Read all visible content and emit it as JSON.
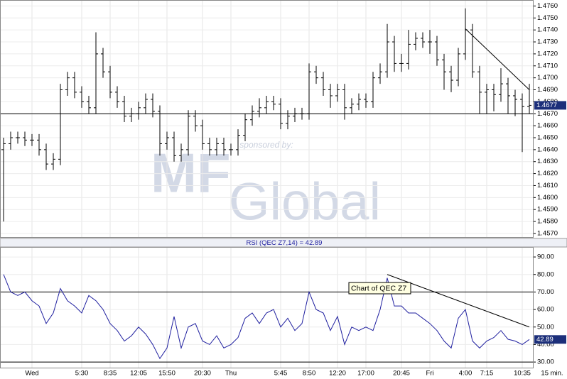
{
  "chart_data": [
    {
      "type": "ohlc",
      "color": "#000000",
      "grid": true,
      "open": [
        1.464,
        1.4645,
        1.465,
        1.465,
        1.4648,
        1.4648,
        1.464,
        1.4628,
        1.4632,
        1.469,
        1.47,
        1.4688,
        1.468,
        1.4675,
        1.472,
        1.4705,
        1.4688,
        1.468,
        1.4668,
        1.467,
        1.4675,
        1.4682,
        1.4672,
        1.4645,
        1.465,
        1.4635,
        1.464,
        1.4668,
        1.466,
        1.4645,
        1.464,
        1.4645,
        1.464,
        1.464,
        1.4652,
        1.4665,
        1.4672,
        1.4675,
        1.468,
        1.4678,
        1.4662,
        1.4668,
        1.467,
        1.467,
        1.4705,
        1.47,
        1.469,
        1.4685,
        1.469,
        1.4675,
        1.4678,
        1.4682,
        1.468,
        1.47,
        1.4705,
        1.473,
        1.4712,
        1.4712,
        1.4728,
        1.4733,
        1.473,
        1.473,
        1.4715,
        1.4705,
        1.4698,
        1.472,
        1.474,
        1.4705,
        1.4688,
        1.469,
        1.4686,
        1.4695,
        1.4685,
        1.4682,
        1.4676
      ],
      "high": [
        1.465,
        1.4655,
        1.4655,
        1.4655,
        1.4653,
        1.4653,
        1.4645,
        1.4637,
        1.4695,
        1.4705,
        1.4705,
        1.4693,
        1.4685,
        1.4738,
        1.4725,
        1.471,
        1.4693,
        1.4685,
        1.4675,
        1.468,
        1.4687,
        1.4687,
        1.4677,
        1.4655,
        1.4655,
        1.4645,
        1.4673,
        1.4673,
        1.4665,
        1.465,
        1.465,
        1.465,
        1.4645,
        1.4657,
        1.467,
        1.4677,
        1.4683,
        1.4685,
        1.4685,
        1.4683,
        1.4673,
        1.4675,
        1.4675,
        1.4712,
        1.471,
        1.4705,
        1.4695,
        1.4695,
        1.4695,
        1.4683,
        1.4687,
        1.4687,
        1.4705,
        1.4712,
        1.4745,
        1.4735,
        1.472,
        1.474,
        1.4738,
        1.4738,
        1.474,
        1.4735,
        1.472,
        1.471,
        1.4725,
        1.4758,
        1.4745,
        1.471,
        1.4695,
        1.4695,
        1.4708,
        1.47,
        1.469,
        1.4687,
        1.4695
      ],
      "low": [
        1.458,
        1.464,
        1.4645,
        1.4643,
        1.4643,
        1.4635,
        1.4623,
        1.4623,
        1.4627,
        1.4685,
        1.4683,
        1.4675,
        1.467,
        1.467,
        1.47,
        1.4683,
        1.4675,
        1.4663,
        1.4663,
        1.4665,
        1.467,
        1.4667,
        1.4635,
        1.464,
        1.463,
        1.463,
        1.4635,
        1.4655,
        1.464,
        1.4635,
        1.4635,
        1.4635,
        1.4635,
        1.4635,
        1.4647,
        1.466,
        1.4667,
        1.467,
        1.4673,
        1.4657,
        1.4657,
        1.4663,
        1.4665,
        1.4665,
        1.4695,
        1.4685,
        1.4675,
        1.468,
        1.4665,
        1.467,
        1.4673,
        1.4675,
        1.4675,
        1.4695,
        1.47,
        1.4705,
        1.4705,
        1.4707,
        1.4723,
        1.4725,
        1.472,
        1.471,
        1.469,
        1.4688,
        1.4693,
        1.4715,
        1.47,
        1.467,
        1.467,
        1.4672,
        1.468,
        1.467,
        1.4668,
        1.4638,
        1.467
      ],
      "close": [
        1.4645,
        1.465,
        1.465,
        1.4648,
        1.4648,
        1.464,
        1.4628,
        1.4632,
        1.469,
        1.47,
        1.4688,
        1.468,
        1.4675,
        1.472,
        1.4705,
        1.4688,
        1.468,
        1.4668,
        1.467,
        1.4675,
        1.4682,
        1.4672,
        1.4645,
        1.465,
        1.4635,
        1.464,
        1.4668,
        1.466,
        1.4645,
        1.464,
        1.4645,
        1.464,
        1.464,
        1.4652,
        1.4665,
        1.4672,
        1.4675,
        1.468,
        1.4678,
        1.4662,
        1.4668,
        1.467,
        1.467,
        1.4705,
        1.47,
        1.469,
        1.4685,
        1.469,
        1.4675,
        1.4678,
        1.4682,
        1.468,
        1.47,
        1.4705,
        1.473,
        1.4712,
        1.4712,
        1.4728,
        1.4733,
        1.473,
        1.473,
        1.4715,
        1.4705,
        1.4698,
        1.472,
        1.474,
        1.4705,
        1.4688,
        1.469,
        1.4686,
        1.4695,
        1.4685,
        1.4682,
        1.4676,
        1.4677
      ],
      "ylim": [
        1.4567,
        1.4765
      ],
      "yticks": [
        {
          "value": 1.457,
          "label": "1.4570"
        },
        {
          "value": 1.458,
          "label": "1.4580"
        },
        {
          "value": 1.459,
          "label": "1.4590"
        },
        {
          "value": 1.46,
          "label": "1.4600"
        },
        {
          "value": 1.461,
          "label": "1.4610"
        },
        {
          "value": 1.462,
          "label": "1.4620"
        },
        {
          "value": 1.463,
          "label": "1.4630"
        },
        {
          "value": 1.464,
          "label": "1.4640"
        },
        {
          "value": 1.465,
          "label": "1.4650"
        },
        {
          "value": 1.466,
          "label": "1.4660"
        },
        {
          "value": 1.467,
          "label": "1.4670"
        },
        {
          "value": 1.468,
          "label": "1.4680"
        },
        {
          "value": 1.469,
          "label": "1.4690"
        },
        {
          "value": 1.47,
          "label": "1.4700"
        },
        {
          "value": 1.471,
          "label": "1.4710"
        },
        {
          "value": 1.472,
          "label": "1.4720"
        },
        {
          "value": 1.473,
          "label": "1.4730"
        },
        {
          "value": 1.474,
          "label": "1.4740"
        },
        {
          "value": 1.475,
          "label": "1.4750"
        },
        {
          "value": 1.476,
          "label": "1.4760"
        }
      ],
      "hlines": [
        1.467
      ],
      "trendlines": [
        {
          "x": [
            65,
            74
          ],
          "y": [
            1.4741,
            1.469
          ]
        }
      ],
      "watermark": {
        "sponsor": "sponsored by:",
        "logo_mark": "MF",
        "logo_word": "Global"
      }
    },
    {
      "type": "line",
      "title": "RSI (QEC Z7,14) = 42.89",
      "color": "#1f1f9f",
      "categories": [
        null,
        null,
        null,
        null,
        "Wed",
        null,
        null,
        null,
        null,
        null,
        null,
        "5:30",
        null,
        null,
        null,
        "8:35",
        null,
        null,
        null,
        "12:05",
        null,
        null,
        null,
        "15:50",
        null,
        null,
        null,
        null,
        "20:30",
        null,
        null,
        null,
        "Thu",
        null,
        null,
        null,
        null,
        null,
        null,
        "5:45",
        null,
        null,
        null,
        "8:50",
        null,
        null,
        null,
        "12:20",
        null,
        null,
        null,
        "17:00",
        null,
        null,
        null,
        null,
        "20:45",
        null,
        null,
        null,
        "Fri",
        null,
        null,
        null,
        null,
        "4:00",
        null,
        null,
        "7:15",
        null,
        null,
        null,
        null,
        "10:35",
        null
      ],
      "values": [
        80,
        70,
        68,
        70,
        65,
        62,
        52,
        58,
        72,
        65,
        62,
        58,
        68,
        65,
        60,
        52,
        48,
        42,
        45,
        50,
        46,
        40,
        32,
        38,
        56,
        38,
        50,
        52,
        42,
        40,
        45,
        38,
        40,
        44,
        55,
        58,
        52,
        58,
        60,
        50,
        55,
        48,
        52,
        70,
        60,
        58,
        48,
        56,
        40,
        50,
        48,
        50,
        48,
        60,
        78,
        62,
        62,
        58,
        58,
        55,
        52,
        48,
        42,
        38,
        55,
        60,
        42,
        38,
        42,
        44,
        48,
        43,
        42,
        40,
        42.89
      ],
      "ylim": [
        26.8,
        95.7
      ],
      "yticks": [
        {
          "value": 30,
          "label": "30.00"
        },
        {
          "value": 40,
          "label": "40.00"
        },
        {
          "value": 50,
          "label": "50.00"
        },
        {
          "value": 60,
          "label": "60.00"
        },
        {
          "value": 70,
          "label": "70.00"
        },
        {
          "value": 80,
          "label": "80.00"
        },
        {
          "value": 90,
          "label": "90.00"
        }
      ],
      "hlines": [
        70,
        30
      ],
      "trendlines": [
        {
          "x": [
            54,
            74
          ],
          "y": [
            80,
            50
          ]
        }
      ],
      "annotation": "Chart of QEC Z7",
      "interval": "15 min."
    }
  ]
}
